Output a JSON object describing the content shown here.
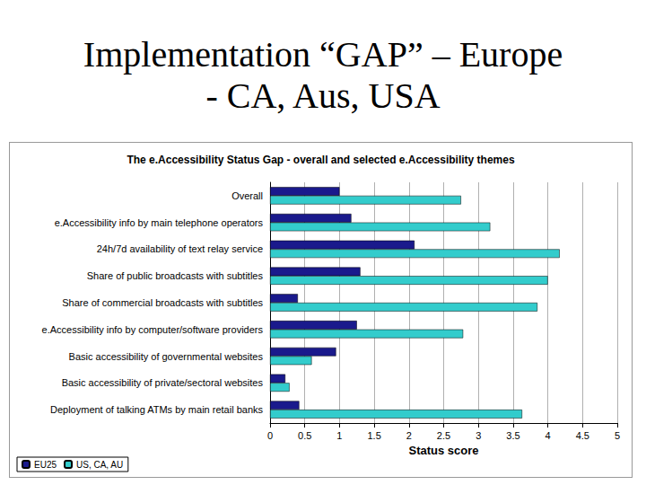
{
  "heading": [
    "Implementation “GAP” – Europe",
    "- CA, Aus, USA"
  ],
  "chart_data": {
    "type": "bar",
    "orientation": "horizontal",
    "title": "The e.Accessibility Status Gap - overall and selected e.Accessibility themes",
    "xlabel": "Status score",
    "categories": [
      "Overall",
      "e.Accessibility info by main telephone operators",
      "24h/7d availability of text relay service",
      "Share of public broadcasts with subtitles",
      "Share of commercial broadcasts with subtitles",
      "e.Accessibility info by computer/software providers",
      "Basic accessibility of governmental websites",
      "Basic accessibility of private/sectoral websites",
      "Deployment of talking ATMs by main retail banks"
    ],
    "series": [
      {
        "name": "EU25",
        "color": "#1a1a8c",
        "values": [
          1.0,
          1.17,
          2.08,
          1.3,
          0.4,
          1.25,
          0.95,
          0.22,
          0.42
        ]
      },
      {
        "name": "US, CA, AU",
        "color": "#33cccc",
        "values": [
          2.75,
          3.17,
          4.17,
          4.0,
          3.85,
          2.78,
          0.6,
          0.28,
          3.63
        ]
      }
    ],
    "xlim": [
      0,
      5
    ],
    "xticks": [
      0,
      0.5,
      1,
      1.5,
      2,
      2.5,
      3,
      3.5,
      4,
      4.5,
      5
    ],
    "grid": true,
    "legend": "lower left"
  }
}
